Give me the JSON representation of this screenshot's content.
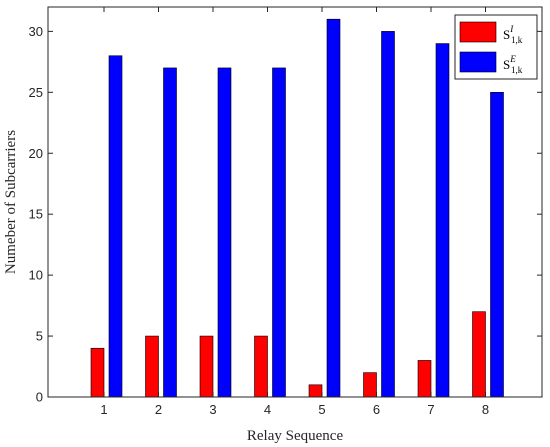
{
  "chart_data": {
    "type": "bar",
    "xlabel": "Relay Sequence",
    "ylabel": "Numeber of Subcarriers",
    "categories": [
      "1",
      "2",
      "3",
      "4",
      "5",
      "6",
      "7",
      "8"
    ],
    "ylim": [
      0,
      32
    ],
    "yticks": [
      "0",
      "5",
      "10",
      "15",
      "20",
      "25",
      "30"
    ],
    "grid": false,
    "legend_position": "top-right",
    "series": [
      {
        "name_base": "S",
        "name_sup": "I",
        "name_sub": "1,k",
        "color": "#ff0000",
        "values": [
          4,
          5,
          5,
          5,
          1,
          2,
          3,
          7
        ]
      },
      {
        "name_base": "S",
        "name_sup": "E",
        "name_sub": "1,k",
        "color": "#0000ff",
        "values": [
          28,
          27,
          27,
          27,
          31,
          30,
          29,
          25
        ]
      }
    ]
  }
}
